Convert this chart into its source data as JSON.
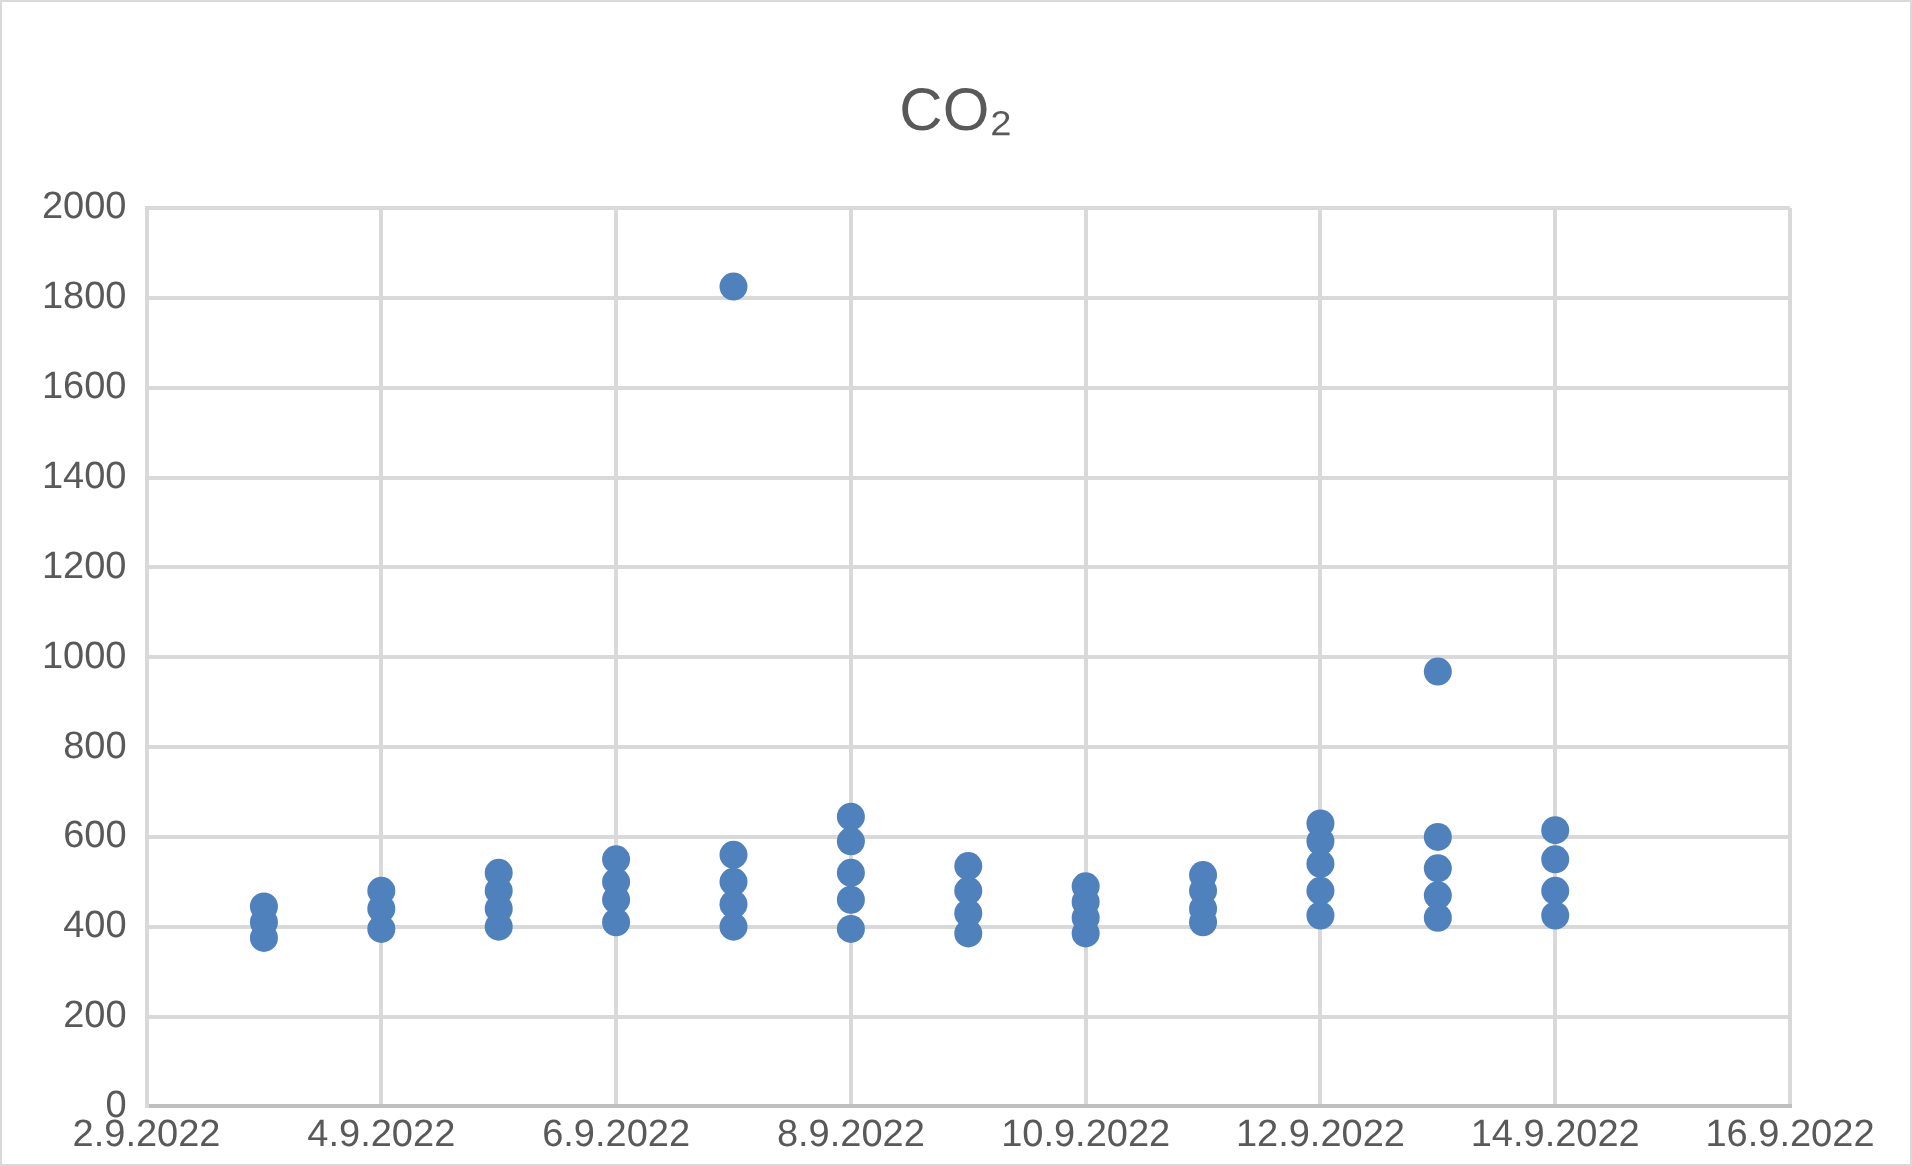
{
  "chart_data": {
    "type": "scatter",
    "title": "CO₂",
    "marker": "circle",
    "grid": true,
    "legend": false,
    "x": [
      "2022-09-03",
      "2022-09-03",
      "2022-09-03",
      "2022-09-04",
      "2022-09-04",
      "2022-09-04",
      "2022-09-05",
      "2022-09-05",
      "2022-09-05",
      "2022-09-05",
      "2022-09-06",
      "2022-09-06",
      "2022-09-06",
      "2022-09-06",
      "2022-09-07",
      "2022-09-07",
      "2022-09-07",
      "2022-09-07",
      "2022-09-07",
      "2022-09-08",
      "2022-09-08",
      "2022-09-08",
      "2022-09-08",
      "2022-09-08",
      "2022-09-09",
      "2022-09-09",
      "2022-09-09",
      "2022-09-09",
      "2022-09-10",
      "2022-09-10",
      "2022-09-10",
      "2022-09-10",
      "2022-09-11",
      "2022-09-11",
      "2022-09-11",
      "2022-09-11",
      "2022-09-12",
      "2022-09-12",
      "2022-09-12",
      "2022-09-12",
      "2022-09-12",
      "2022-09-13",
      "2022-09-13",
      "2022-09-13",
      "2022-09-13",
      "2022-09-13",
      "2022-09-14",
      "2022-09-14",
      "2022-09-14",
      "2022-09-14"
    ],
    "series": [
      {
        "color": "#4f81bd",
        "values": [
          375,
          410,
          445,
          395,
          440,
          480,
          400,
          440,
          480,
          520,
          410,
          460,
          500,
          550,
          400,
          450,
          500,
          560,
          1825,
          395,
          460,
          520,
          590,
          645,
          385,
          430,
          480,
          535,
          385,
          420,
          455,
          490,
          410,
          440,
          480,
          515,
          425,
          480,
          540,
          590,
          630,
          420,
          470,
          530,
          600,
          968,
          425,
          480,
          550,
          615
        ]
      }
    ],
    "xlim": [
      "2022-09-02",
      "2022-09-16"
    ],
    "xticks": [
      {
        "value": "2022-09-02",
        "label": "2.9.2022"
      },
      {
        "value": "2022-09-04",
        "label": "4.9.2022"
      },
      {
        "value": "2022-09-06",
        "label": "6.9.2022"
      },
      {
        "value": "2022-09-08",
        "label": "8.9.2022"
      },
      {
        "value": "2022-09-10",
        "label": "10.9.2022"
      },
      {
        "value": "2022-09-12",
        "label": "12.9.2022"
      },
      {
        "value": "2022-09-14",
        "label": "14.9.2022"
      },
      {
        "value": "2022-09-16",
        "label": "16.9.2022"
      }
    ],
    "ylim": [
      0,
      2000
    ],
    "yticks": [
      0,
      200,
      400,
      600,
      800,
      1000,
      1200,
      1400,
      1600,
      1800,
      2000
    ]
  }
}
